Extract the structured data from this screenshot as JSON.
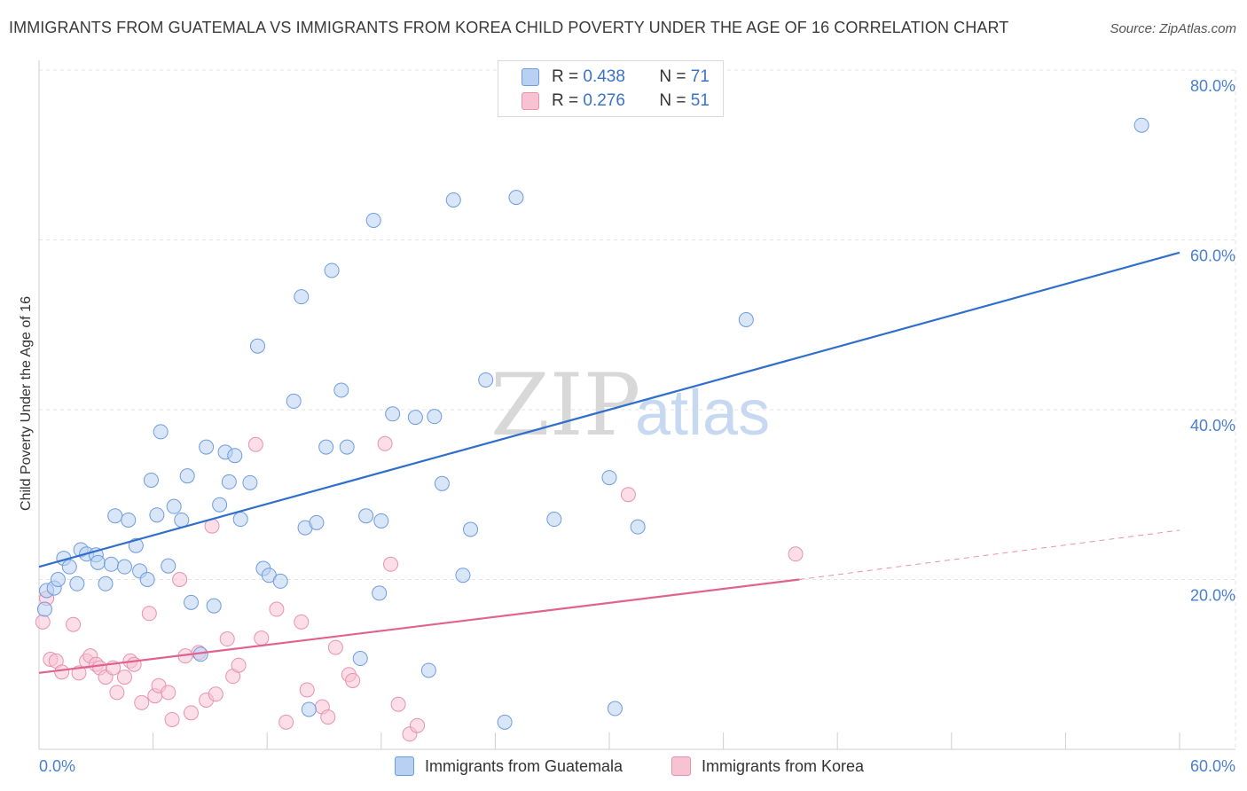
{
  "header": {
    "title": "IMMIGRANTS FROM GUATEMALA VS IMMIGRANTS FROM KOREA CHILD POVERTY UNDER THE AGE OF 16 CORRELATION CHART",
    "source": "Source: ZipAtlas.com"
  },
  "watermark": {
    "zip": "ZIP",
    "atlas": "atlas"
  },
  "legend": {
    "rows": [
      {
        "r_label": "R =",
        "r_value": "0.438",
        "n_label": "N =",
        "n_value": "71"
      },
      {
        "r_label": "R =",
        "r_value": "0.276",
        "n_label": "N =",
        "n_value": "51"
      }
    ]
  },
  "colors": {
    "guatemala_fill": "#b8d1f3",
    "guatemala_stroke": "#6f9be0",
    "guatemala_line": "#2f6fcb",
    "korea_fill": "#f7c3d3",
    "korea_stroke": "#e892ae",
    "korea_line": "#e0638f",
    "tick_color": "#4a7fcf",
    "grid": "#e3e3e3"
  },
  "chart_data": {
    "type": "scatter",
    "ylabel": "Child Poverty Under the Age of 16",
    "xlim": [
      0,
      60
    ],
    "ylim": [
      0,
      80
    ],
    "x_tick_labels": [
      "0.0%",
      "60.0%"
    ],
    "y_tick_labels": [
      "20.0%",
      "40.0%",
      "60.0%",
      "80.0%"
    ],
    "y_ticks": [
      20,
      40,
      60,
      80
    ],
    "grid": true,
    "series": [
      {
        "name": "Immigrants from Guatemala",
        "color": "#6f9be0",
        "points": [
          [
            0.3,
            16.5
          ],
          [
            0.4,
            18.7
          ],
          [
            0.8,
            19.0
          ],
          [
            1.0,
            20.0
          ],
          [
            1.3,
            22.5
          ],
          [
            1.6,
            21.5
          ],
          [
            2.0,
            19.5
          ],
          [
            2.2,
            23.5
          ],
          [
            2.5,
            23.0
          ],
          [
            3.0,
            22.9
          ],
          [
            3.1,
            22.0
          ],
          [
            3.5,
            19.5
          ],
          [
            3.8,
            21.8
          ],
          [
            4.0,
            27.5
          ],
          [
            4.7,
            27.0
          ],
          [
            4.5,
            21.5
          ],
          [
            5.1,
            24.0
          ],
          [
            5.3,
            21.0
          ],
          [
            5.7,
            20.0
          ],
          [
            5.9,
            31.7
          ],
          [
            6.2,
            27.6
          ],
          [
            6.4,
            37.4
          ],
          [
            6.8,
            21.6
          ],
          [
            7.1,
            28.6
          ],
          [
            7.5,
            27.0
          ],
          [
            7.8,
            32.2
          ],
          [
            8.0,
            17.3
          ],
          [
            8.5,
            11.2
          ],
          [
            8.8,
            35.6
          ],
          [
            9.2,
            16.9
          ],
          [
            9.5,
            28.8
          ],
          [
            9.8,
            35.0
          ],
          [
            10.0,
            31.5
          ],
          [
            10.3,
            34.6
          ],
          [
            10.6,
            27.1
          ],
          [
            11.1,
            31.4
          ],
          [
            11.5,
            47.5
          ],
          [
            11.8,
            21.3
          ],
          [
            12.1,
            20.5
          ],
          [
            12.7,
            19.8
          ],
          [
            13.4,
            41.0
          ],
          [
            13.8,
            53.3
          ],
          [
            14.0,
            26.1
          ],
          [
            14.2,
            4.7
          ],
          [
            14.6,
            26.7
          ],
          [
            15.1,
            35.6
          ],
          [
            15.4,
            56.4
          ],
          [
            15.9,
            42.3
          ],
          [
            16.2,
            35.6
          ],
          [
            16.9,
            10.7
          ],
          [
            17.2,
            27.5
          ],
          [
            17.6,
            62.3
          ],
          [
            17.9,
            18.4
          ],
          [
            18.0,
            26.9
          ],
          [
            18.6,
            39.5
          ],
          [
            19.8,
            39.1
          ],
          [
            20.5,
            9.3
          ],
          [
            20.8,
            39.2
          ],
          [
            21.2,
            31.3
          ],
          [
            21.8,
            64.7
          ],
          [
            22.3,
            20.5
          ],
          [
            22.7,
            25.9
          ],
          [
            23.5,
            43.5
          ],
          [
            24.5,
            3.2
          ],
          [
            25.1,
            65.0
          ],
          [
            27.1,
            27.1
          ],
          [
            30.0,
            32.0
          ],
          [
            30.3,
            4.8
          ],
          [
            31.5,
            26.2
          ],
          [
            37.2,
            50.6
          ],
          [
            58.0,
            73.5
          ]
        ],
        "trend": {
          "x": [
            0,
            60
          ],
          "y": [
            21.5,
            58.5
          ]
        }
      },
      {
        "name": "Immigrants from Korea",
        "color": "#e892ae",
        "points": [
          [
            0.2,
            15.0
          ],
          [
            0.4,
            17.8
          ],
          [
            0.6,
            10.6
          ],
          [
            0.9,
            10.4
          ],
          [
            1.2,
            9.1
          ],
          [
            1.8,
            14.7
          ],
          [
            2.1,
            9.0
          ],
          [
            2.5,
            10.4
          ],
          [
            2.7,
            11.0
          ],
          [
            3.0,
            10.0
          ],
          [
            3.2,
            9.6
          ],
          [
            3.5,
            8.5
          ],
          [
            3.9,
            9.6
          ],
          [
            4.1,
            6.7
          ],
          [
            4.5,
            8.5
          ],
          [
            4.8,
            10.4
          ],
          [
            5.0,
            10.0
          ],
          [
            5.4,
            5.5
          ],
          [
            5.8,
            16.0
          ],
          [
            6.1,
            6.3
          ],
          [
            6.3,
            7.5
          ],
          [
            6.8,
            6.7
          ],
          [
            7.0,
            3.5
          ],
          [
            7.4,
            20.0
          ],
          [
            7.7,
            11.0
          ],
          [
            8.0,
            4.3
          ],
          [
            8.4,
            11.4
          ],
          [
            8.8,
            5.8
          ],
          [
            9.1,
            26.3
          ],
          [
            9.3,
            6.5
          ],
          [
            9.9,
            13.0
          ],
          [
            10.2,
            8.6
          ],
          [
            10.5,
            9.9
          ],
          [
            11.4,
            35.9
          ],
          [
            11.7,
            13.1
          ],
          [
            12.5,
            16.5
          ],
          [
            13.0,
            3.2
          ],
          [
            13.8,
            15.0
          ],
          [
            14.1,
            7.0
          ],
          [
            14.9,
            5.0
          ],
          [
            15.2,
            3.8
          ],
          [
            15.6,
            12.0
          ],
          [
            16.3,
            8.8
          ],
          [
            16.5,
            8.1
          ],
          [
            18.2,
            36.0
          ],
          [
            18.5,
            21.8
          ],
          [
            18.9,
            5.3
          ],
          [
            19.5,
            1.8
          ],
          [
            19.9,
            2.8
          ],
          [
            31.0,
            30.0
          ],
          [
            39.8,
            23.0
          ]
        ],
        "trend": {
          "x": [
            0,
            40
          ],
          "y": [
            9.0,
            20.0
          ]
        },
        "trend_extension": {
          "x": [
            40,
            60
          ],
          "y": [
            20.0,
            25.8
          ]
        }
      }
    ]
  },
  "bottom_legend": {
    "items": [
      {
        "label": "Immigrants from Guatemala"
      },
      {
        "label": "Immigrants from Korea"
      }
    ]
  }
}
